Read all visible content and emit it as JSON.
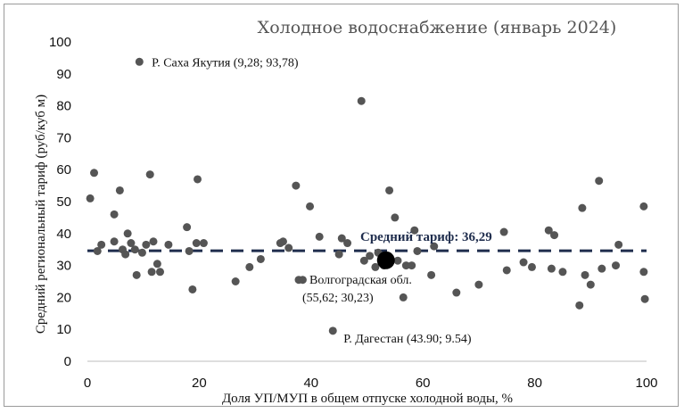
{
  "chart_data": {
    "type": "scatter",
    "title": "Холодное водоснабжение (январь 2024)",
    "xlabel": "Доля УП/МУП  в общем  отпуске холодной воды, %",
    "ylabel": "Средний региональный тариф (руб/куб м)",
    "xlim": [
      0,
      100
    ],
    "ylim": [
      0,
      100
    ],
    "x_ticks": [
      "0",
      "20",
      "40",
      "60",
      "80",
      "100"
    ],
    "y_ticks": [
      "0",
      "10",
      "20",
      "30",
      "40",
      "50",
      "60",
      "70",
      "80",
      "90",
      "100"
    ],
    "grid": false,
    "legend": "none",
    "mean_tariff": {
      "value": 36.29,
      "label": "Средний тариф: 36,29"
    },
    "highlight": {
      "x": 55.62,
      "y": 30.23,
      "label_line1": "Волгоградская обл.",
      "label_line2": "(55,62;  30,23)"
    },
    "annotations": [
      {
        "x": 9.28,
        "y": 93.78,
        "label": "Р. Саха Якутия (9,28;  93,78)"
      },
      {
        "x": 43.9,
        "y": 9.54,
        "label": "Р. Дагестан (43.90; 9.54)"
      }
    ],
    "colors": {
      "points": "#555555",
      "highlight": "#000000",
      "mean_line": "#1f2d4d"
    },
    "points": [
      {
        "x": 0.5,
        "y": 51
      },
      {
        "x": 1.2,
        "y": 59
      },
      {
        "x": 1.8,
        "y": 34.5
      },
      {
        "x": 2.5,
        "y": 36.5
      },
      {
        "x": 4.8,
        "y": 46
      },
      {
        "x": 4.8,
        "y": 37.5
      },
      {
        "x": 5.8,
        "y": 53.5
      },
      {
        "x": 6.3,
        "y": 35
      },
      {
        "x": 6.8,
        "y": 33.5
      },
      {
        "x": 7.2,
        "y": 40
      },
      {
        "x": 7.8,
        "y": 37
      },
      {
        "x": 8.5,
        "y": 35
      },
      {
        "x": 8.8,
        "y": 27
      },
      {
        "x": 9.3,
        "y": 93.78
      },
      {
        "x": 9.8,
        "y": 34
      },
      {
        "x": 10.5,
        "y": 36.5
      },
      {
        "x": 11.2,
        "y": 58.5
      },
      {
        "x": 11.5,
        "y": 28
      },
      {
        "x": 11.8,
        "y": 37.5
      },
      {
        "x": 12.5,
        "y": 30.5
      },
      {
        "x": 13,
        "y": 28
      },
      {
        "x": 14.5,
        "y": 36.5
      },
      {
        "x": 17.8,
        "y": 42
      },
      {
        "x": 18.2,
        "y": 34.5
      },
      {
        "x": 18.8,
        "y": 22.5
      },
      {
        "x": 19.5,
        "y": 37
      },
      {
        "x": 19.7,
        "y": 57
      },
      {
        "x": 20.8,
        "y": 37
      },
      {
        "x": 26.5,
        "y": 25
      },
      {
        "x": 29,
        "y": 29.5
      },
      {
        "x": 31,
        "y": 32
      },
      {
        "x": 34.5,
        "y": 37
      },
      {
        "x": 35,
        "y": 37.5
      },
      {
        "x": 36,
        "y": 35.5
      },
      {
        "x": 37.3,
        "y": 55
      },
      {
        "x": 37.8,
        "y": 25.5
      },
      {
        "x": 38.5,
        "y": 25.5
      },
      {
        "x": 39.8,
        "y": 48.5
      },
      {
        "x": 41.5,
        "y": 39
      },
      {
        "x": 43.9,
        "y": 9.54
      },
      {
        "x": 45,
        "y": 33.5
      },
      {
        "x": 45.5,
        "y": 38.5
      },
      {
        "x": 46.5,
        "y": 37
      },
      {
        "x": 49,
        "y": 81.5
      },
      {
        "x": 49.5,
        "y": 31.5
      },
      {
        "x": 50.5,
        "y": 33
      },
      {
        "x": 51.5,
        "y": 29.5
      },
      {
        "x": 52,
        "y": 34
      },
      {
        "x": 53,
        "y": 30
      },
      {
        "x": 54,
        "y": 53.5
      },
      {
        "x": 55,
        "y": 45
      },
      {
        "x": 55.5,
        "y": 31.5
      },
      {
        "x": 56.5,
        "y": 20
      },
      {
        "x": 57,
        "y": 30
      },
      {
        "x": 58,
        "y": 30
      },
      {
        "x": 58.5,
        "y": 41
      },
      {
        "x": 59,
        "y": 34.5
      },
      {
        "x": 61.5,
        "y": 27
      },
      {
        "x": 62,
        "y": 36
      },
      {
        "x": 66,
        "y": 21.5
      },
      {
        "x": 70,
        "y": 24
      },
      {
        "x": 74.5,
        "y": 40.5
      },
      {
        "x": 75,
        "y": 28.5
      },
      {
        "x": 78,
        "y": 31
      },
      {
        "x": 79.5,
        "y": 29.5
      },
      {
        "x": 82.5,
        "y": 41
      },
      {
        "x": 83,
        "y": 29
      },
      {
        "x": 83.5,
        "y": 39.5
      },
      {
        "x": 85,
        "y": 28
      },
      {
        "x": 88,
        "y": 17.5
      },
      {
        "x": 88.5,
        "y": 48
      },
      {
        "x": 89,
        "y": 27
      },
      {
        "x": 90,
        "y": 24
      },
      {
        "x": 91.5,
        "y": 56.5
      },
      {
        "x": 92,
        "y": 29
      },
      {
        "x": 94.5,
        "y": 30
      },
      {
        "x": 95,
        "y": 36.5
      },
      {
        "x": 99.5,
        "y": 48.5
      },
      {
        "x": 99.5,
        "y": 28
      },
      {
        "x": 99.7,
        "y": 19.5
      }
    ]
  }
}
